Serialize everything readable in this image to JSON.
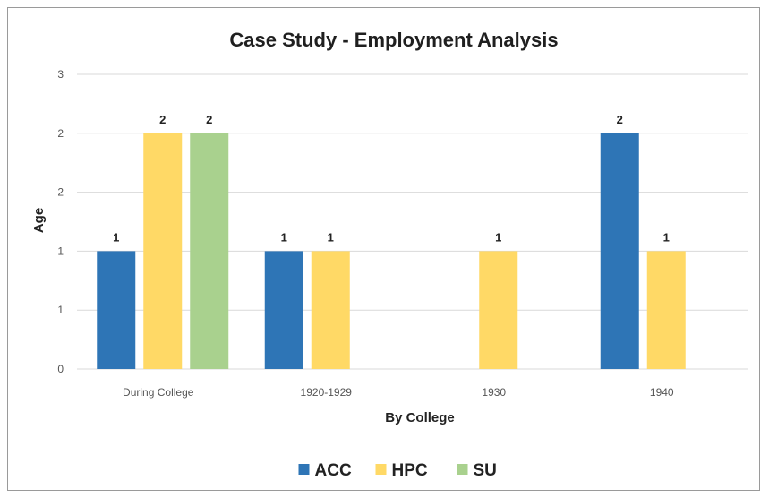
{
  "chart_data": {
    "type": "bar",
    "title": "Case Study - Employment Analysis",
    "xlabel": "By College",
    "ylabel": "Age",
    "categories": [
      "During College",
      "1920-1929",
      "1930",
      "1940"
    ],
    "y_tick_labels": [
      "0",
      "1",
      "1",
      "2",
      "2",
      "3"
    ],
    "ylim": [
      0,
      2.5
    ],
    "grid": true,
    "legend_position": "bottom",
    "series": [
      {
        "name": "ACC",
        "color": "#2e75b6",
        "values": [
          1,
          1,
          null,
          2
        ],
        "labels": [
          "1",
          "1",
          "",
          "2"
        ]
      },
      {
        "name": "HPC",
        "color": "#ffd966",
        "values": [
          2,
          1,
          1,
          1
        ],
        "labels": [
          "2",
          "1",
          "1",
          "1"
        ]
      },
      {
        "name": "SU",
        "color": "#a9d18e",
        "values": [
          2,
          null,
          null,
          null
        ],
        "labels": [
          "2",
          "",
          "",
          ""
        ]
      }
    ]
  }
}
